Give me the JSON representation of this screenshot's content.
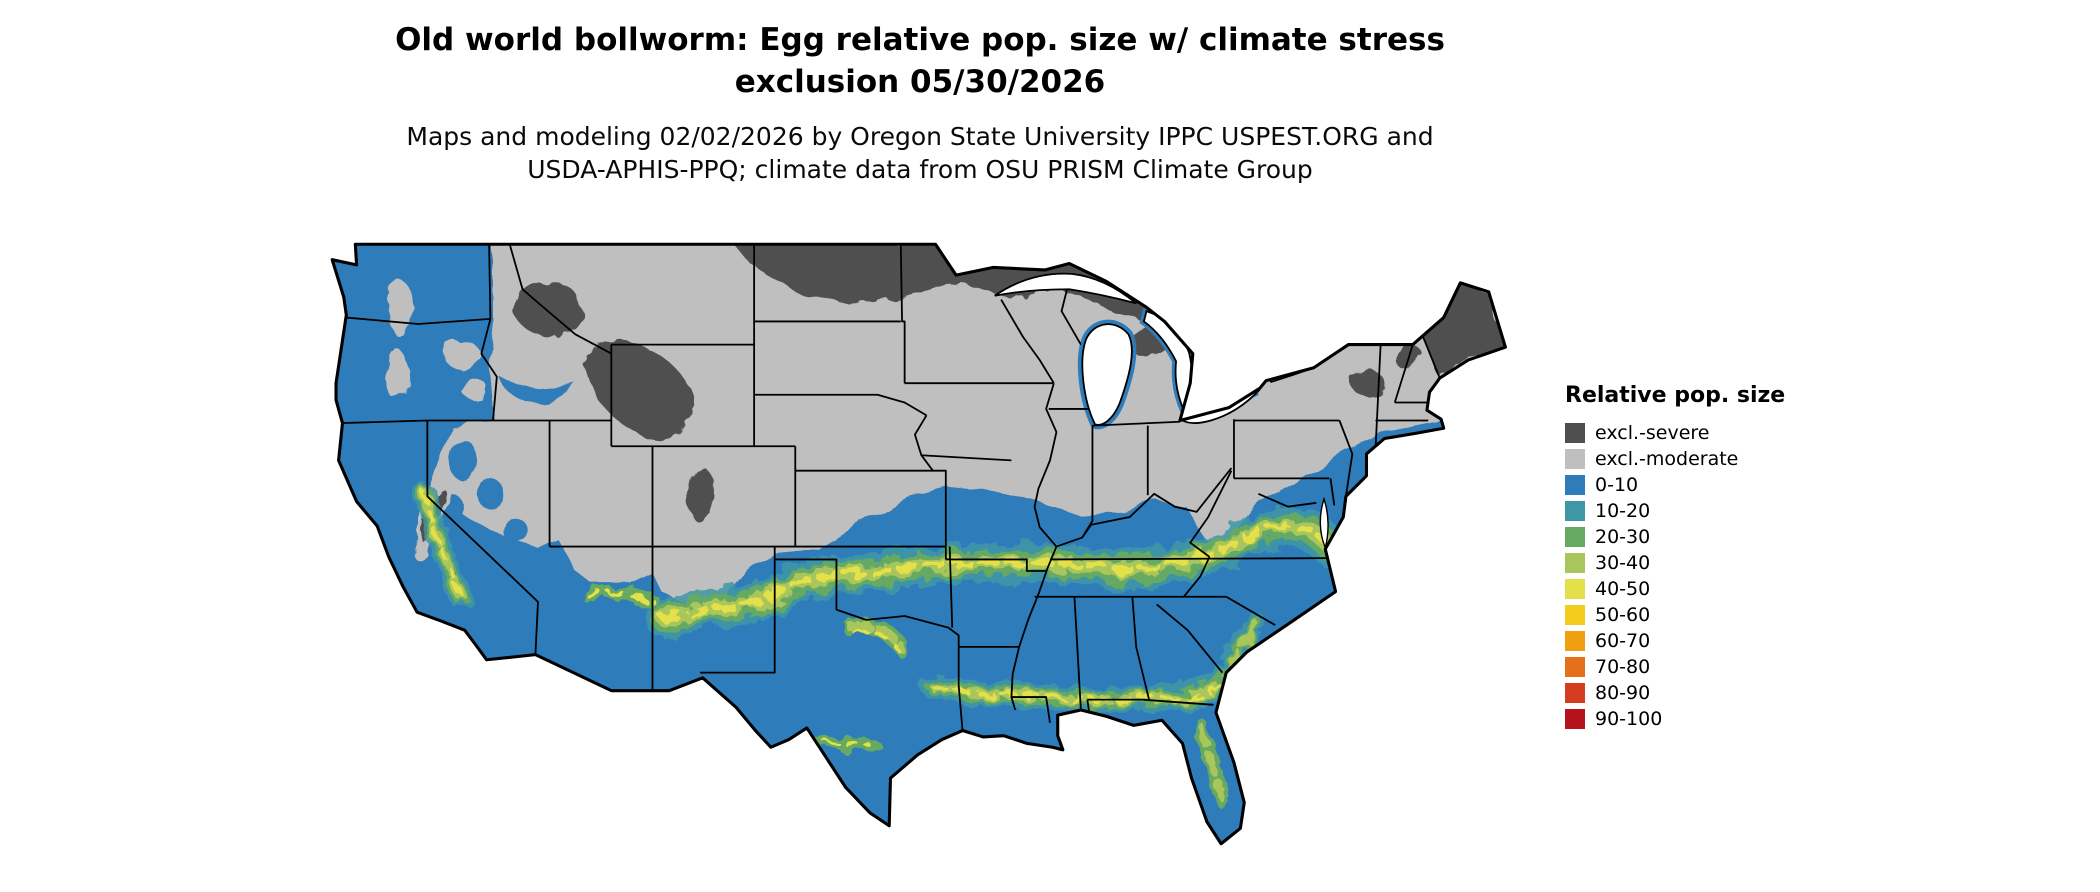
{
  "header": {
    "title_line1": "Old world bollworm: Egg relative pop. size w/ climate stress",
    "title_line2": "exclusion 05/30/2026",
    "subtitle_line1": "Maps and modeling 02/02/2026 by Oregon State University IPPC USPEST.ORG and",
    "subtitle_line2": "USDA-APHIS-PPQ; climate data from OSU PRISM Climate Group"
  },
  "legend": {
    "title": "Relative pop. size",
    "items": [
      {
        "label": "excl.-severe",
        "color": "#4f4f4f"
      },
      {
        "label": "excl.-moderate",
        "color": "#bfbfbf"
      },
      {
        "label": "0-10",
        "color": "#2f7cba"
      },
      {
        "label": "10-20",
        "color": "#3f96a6"
      },
      {
        "label": "20-30",
        "color": "#66a963"
      },
      {
        "label": "30-40",
        "color": "#a9c65c"
      },
      {
        "label": "40-50",
        "color": "#e4e04a"
      },
      {
        "label": "50-60",
        "color": "#f2cb1d"
      },
      {
        "label": "60-70",
        "color": "#f09f13"
      },
      {
        "label": "70-80",
        "color": "#e4711a"
      },
      {
        "label": "80-90",
        "color": "#d43d20"
      },
      {
        "label": "90-100",
        "color": "#b5121b"
      }
    ]
  },
  "map": {
    "colors": {
      "water": "#ffffff",
      "border": "#000000"
    }
  }
}
